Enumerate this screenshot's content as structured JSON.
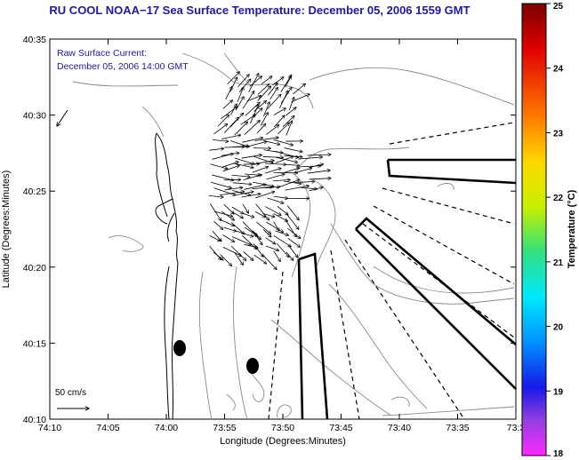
{
  "title": "RU COOL  NOAA−17  Sea Surface Temperature:  December 05, 2006 1559 GMT",
  "current_label": {
    "line1": "Raw Surface Current:",
    "line2": "December 05, 2006 14:00 GMT"
  },
  "scale": {
    "label": "50 cm/s"
  },
  "axes": {
    "xlabel": "Longitude (Degrees:Minutes)",
    "ylabel": "Latitude (Degrees:Minutes)",
    "x_ticks": [
      "74:10",
      "74:05",
      "74:00",
      "73:55",
      "73:50",
      "73:45",
      "73:40",
      "73:35",
      "73:3"
    ],
    "y_ticks": [
      "40:35",
      "40:30",
      "40:25",
      "40:20",
      "40:15",
      "40:10"
    ]
  },
  "colorbar": {
    "label": "Temperature (°C)",
    "ticks": [
      "25",
      "24",
      "23",
      "22",
      "21",
      "20",
      "19",
      "18"
    ],
    "range": [
      18,
      25
    ]
  }
}
